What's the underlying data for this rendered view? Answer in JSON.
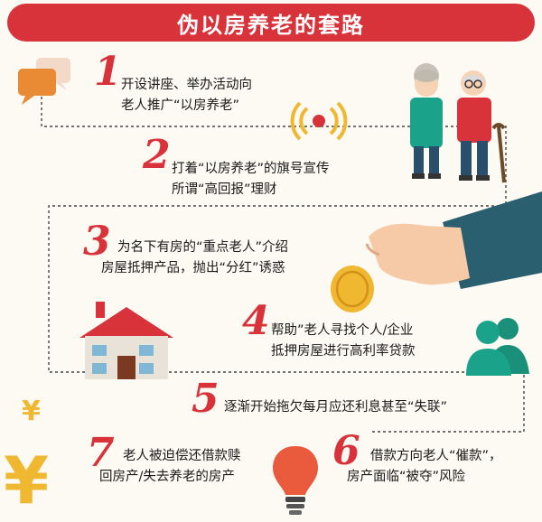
{
  "title": "伪以房养老的套路",
  "steps": [
    {
      "num": "1",
      "lines": [
        "开设讲座、举办活动向",
        "老人推广“以房养老”"
      ]
    },
    {
      "num": "2",
      "lines": [
        "打着“以房养老”的旗号宣传",
        "所谓“高回报”理财"
      ]
    },
    {
      "num": "3",
      "lines": [
        "为名下有房的“重点老人”介绍",
        "房屋抵押产品，抛出“分红”诱惑"
      ]
    },
    {
      "num": "4",
      "lines": [
        "帮助”老人寻找个人/企业",
        "抵押房屋进行高利率贷款"
      ]
    },
    {
      "num": "5",
      "lines": [
        "逐渐开始拖欠每月应还利息甚至“失联”"
      ]
    },
    {
      "num": "6",
      "lines": [
        "借款方向老人“催款”，",
        "房产面临“被夺”风险"
      ]
    },
    {
      "num": "7",
      "lines": [
        "老人被迫偿还借款赎",
        "回房产/失去养老的房产"
      ]
    }
  ],
  "icons": [
    "chat-bubbles-icon",
    "elderly-couple-icon",
    "signal-icon",
    "hand-coin-icon",
    "house-icon",
    "people-icon",
    "yen-icon",
    "lightbulb-icon"
  ],
  "colors": {
    "red": "#d8323a",
    "teal": "#1aa38a",
    "orange": "#e98a35",
    "gold": "#f0b830"
  }
}
